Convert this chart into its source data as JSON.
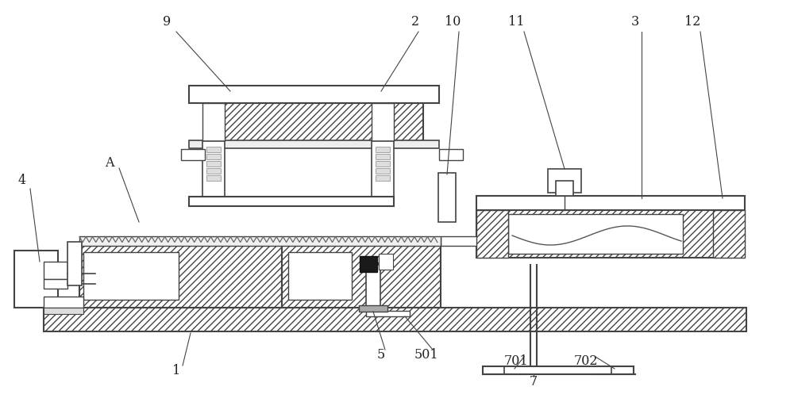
{
  "bg_color": "#ffffff",
  "ec": "#444444",
  "lc": "#444444",
  "label_color": "#222222",
  "figsize": [
    10.0,
    5.07
  ],
  "dpi": 100,
  "hatch_density": "////",
  "hatch_density2": "xxxx"
}
